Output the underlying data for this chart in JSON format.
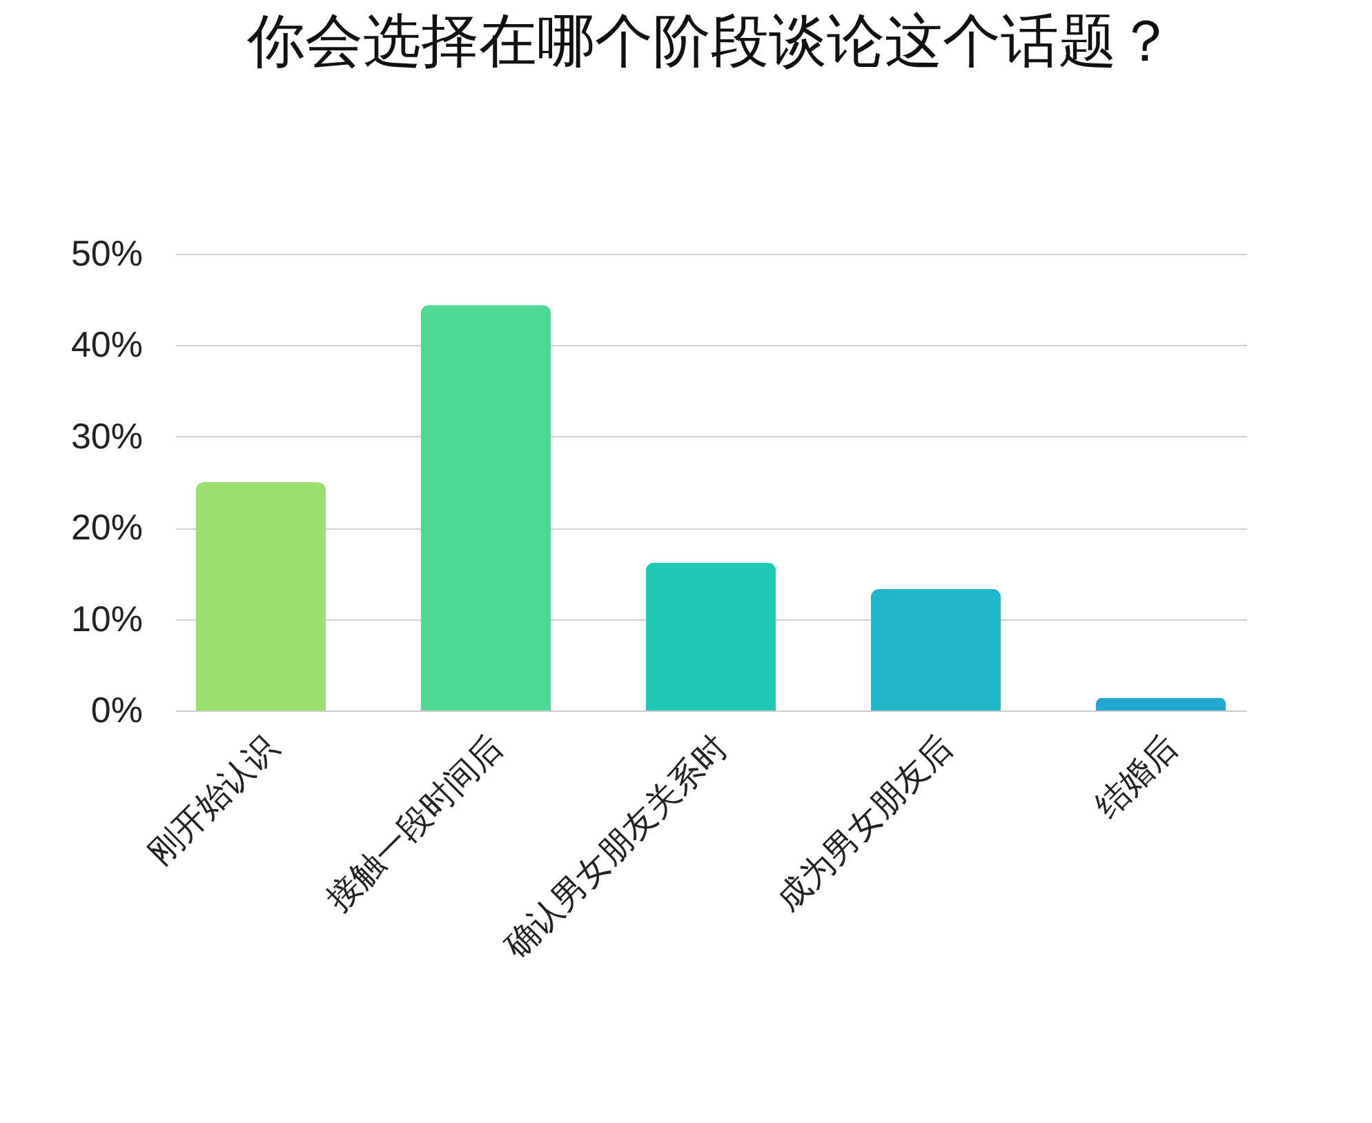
{
  "chart_data": {
    "type": "bar",
    "title": "你会选择在哪个阶段谈论这个话题？",
    "categories": [
      "刚开始认识",
      "接触一段时间后",
      "确认男女朋友关系时",
      "成为男女朋友后",
      "结婚后"
    ],
    "values": [
      25,
      44.4,
      16.2,
      13.3,
      1.4
    ],
    "colors": [
      "#9be06e",
      "#4dd894",
      "#22c8b6",
      "#20b8c8",
      "#20a8d0"
    ],
    "ylim": [
      0,
      50
    ],
    "yticks": [
      {
        "value": 0,
        "label": "0%"
      },
      {
        "value": 10,
        "label": "10%"
      },
      {
        "value": 20,
        "label": "20%"
      },
      {
        "value": 30,
        "label": "30%"
      },
      {
        "value": 40,
        "label": "40%"
      },
      {
        "value": 50,
        "label": "50%"
      }
    ],
    "grid": "y"
  }
}
